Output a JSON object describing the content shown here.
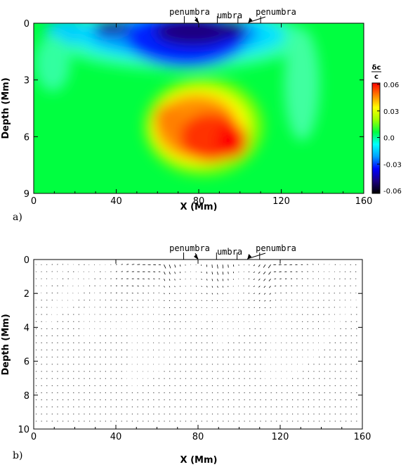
{
  "chart_data": [
    {
      "type": "heatmap",
      "panel_label": "a)",
      "xlabel": "X (Mm)",
      "ylabel": "Depth (Mm)",
      "xlim": [
        0,
        160
      ],
      "ylim": [
        9,
        0
      ],
      "xticks": [
        0,
        40,
        80,
        120,
        160
      ],
      "yticks": [
        0,
        3,
        6,
        9
      ],
      "colorbar": {
        "label_top": "δc",
        "label_bottom": "c",
        "range": [
          -0.06,
          0.06
        ],
        "ticks": [
          "0.06",
          "0.03",
          "0.0",
          "-0.03",
          "-0.06"
        ],
        "colors": [
          "#000000",
          "#1a0080",
          "#0000ff",
          "#00a0ff",
          "#00ffff",
          "#00ff40",
          "#a0ff00",
          "#ffff00",
          "#ff8000",
          "#ff0000"
        ]
      },
      "annotations": [
        {
          "text": "penumbra",
          "x_start": 73,
          "x_end": 80,
          "arrow": "toward-center"
        },
        {
          "text": "umbra",
          "x_start": 89,
          "x_end": 99
        },
        {
          "text": "penumbra",
          "x_start": 110,
          "x_end": 104,
          "arrow": "toward-center"
        }
      ],
      "field_description": "sound-speed perturbation: negative (blue) near surface at x≈30–115 Mm, positive (red, up to ~0.06) at depth 4–8 Mm, x≈58–105 Mm"
    },
    {
      "type": "scatter",
      "subtype": "vector-field",
      "panel_label": "b)",
      "xlabel": "X (Mm)",
      "ylabel": "Depth (Mm)",
      "xlim": [
        0,
        160
      ],
      "ylim": [
        10,
        0
      ],
      "xticks": [
        0,
        40,
        80,
        120,
        160
      ],
      "yticks": [
        0,
        2,
        4,
        6,
        8,
        10
      ],
      "annotations": [
        {
          "text": "penumbra",
          "x_start": 73,
          "x_end": 80,
          "arrow": "toward-center"
        },
        {
          "text": "umbra",
          "x_start": 89,
          "x_end": 99
        },
        {
          "text": "penumbra",
          "x_start": 110,
          "x_end": 104,
          "arrow": "toward-center"
        }
      ],
      "field_description": "flow vectors: strong downflows beneath umbra/penumbra at x≈65–110 Mm in upper 2 Mm, converging horizontal flows near surface, weakening with depth"
    }
  ]
}
